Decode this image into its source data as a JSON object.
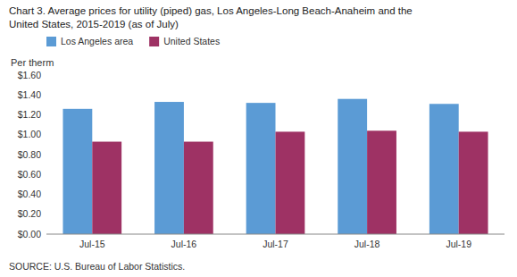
{
  "chart_data": {
    "type": "bar",
    "title": "Chart 3. Average prices for utility (piped) gas, Los Angeles-Long Beach-Anaheim and the",
    "subtitle": "United States, 2015-2019  (as of July)",
    "y_label": "Per therm",
    "source": "SOURCE: U.S. Bureau of Labor Statistics.",
    "categories": [
      "Jul-15",
      "Jul-16",
      "Jul-17",
      "Jul-18",
      "Jul-19"
    ],
    "series": [
      {
        "name": "Los Angeles area",
        "color": "#5B9BD5",
        "values": [
          1.26,
          1.33,
          1.32,
          1.36,
          1.31
        ]
      },
      {
        "name": "United States",
        "color": "#9E3264",
        "values": [
          0.93,
          0.93,
          1.03,
          1.04,
          1.03
        ]
      }
    ],
    "ylim": [
      0,
      1.6
    ],
    "yticks": [
      {
        "value": 0.0,
        "label": "$0.00"
      },
      {
        "value": 0.2,
        "label": "$0.20"
      },
      {
        "value": 0.4,
        "label": "$0.40"
      },
      {
        "value": 0.6,
        "label": "$0.60"
      },
      {
        "value": 0.8,
        "label": "$0.80"
      },
      {
        "value": 1.0,
        "label": "$1.00"
      },
      {
        "value": 1.2,
        "label": "$1.20"
      },
      {
        "value": 1.4,
        "label": "$1.40"
      },
      {
        "value": 1.6,
        "label": "$1.60"
      }
    ],
    "grid": false,
    "legend": "top-left"
  }
}
